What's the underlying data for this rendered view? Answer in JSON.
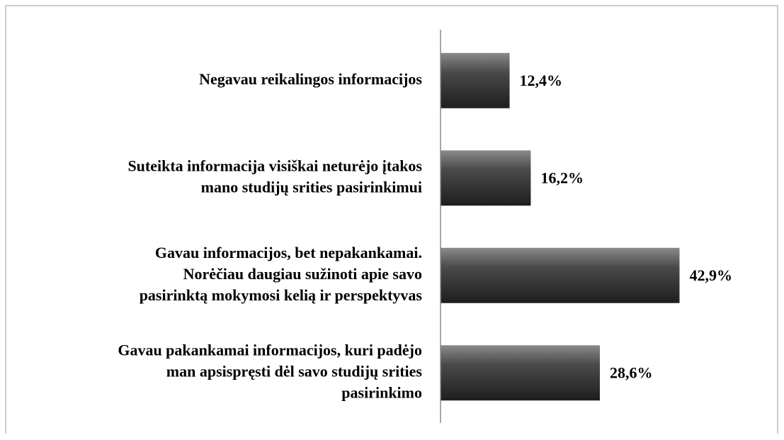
{
  "chart_data": {
    "type": "bar",
    "orientation": "horizontal",
    "categories": [
      [
        "Negavau reikalingos informacijos"
      ],
      [
        "Suteikta informacija visiškai neturėjo įtakos",
        "mano studijų srities pasirinkimui"
      ],
      [
        "Gavau informacijos, bet nepakankamai.",
        "Norėčiau daugiau sužinoti apie savo",
        "pasirinktą mokymosi kelią ir perspektyvas"
      ],
      [
        "Gavau pakankamai informacijos, kuri padėjo",
        "man apsispręsti dėl savo studijų srities",
        "pasirinkimo"
      ]
    ],
    "values": [
      12.4,
      16.2,
      42.9,
      28.6
    ],
    "value_labels": [
      "12,4%",
      "16,2%",
      "42,9%",
      "28,6%"
    ],
    "color": "#3a3a3a",
    "xlim": [
      0,
      60
    ]
  }
}
